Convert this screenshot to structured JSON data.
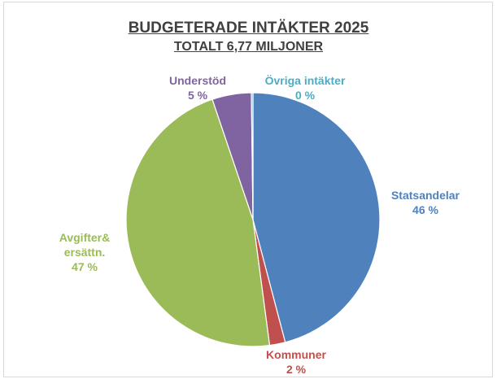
{
  "chart_data": {
    "type": "pie",
    "title": "BUDGETERADE INTÄKTER 2025",
    "subtitle": "TOTALT 6,77 MILJONER",
    "slices": [
      {
        "label": "Statsandelar",
        "value": 46,
        "value_text": "46 %",
        "color": "#4f81bd",
        "label_color": "#4f81bd"
      },
      {
        "label": "Kommuner",
        "value": 2,
        "value_text": "2 %",
        "color": "#c0504d",
        "label_color": "#c0504d"
      },
      {
        "label": "Avgifter&\nersättn.",
        "value": 47,
        "value_text": "47 %",
        "color": "#9bbb59",
        "label_color": "#9bbb59"
      },
      {
        "label": "Understöd",
        "value": 5,
        "value_text": "5 %",
        "color": "#8064a2",
        "label_color": "#8064a2"
      },
      {
        "label": "Övriga intäkter",
        "value": 0.2,
        "value_text": "0 %",
        "color": "#4bacc6",
        "label_color": "#4bacc6"
      }
    ],
    "legend": "none"
  }
}
